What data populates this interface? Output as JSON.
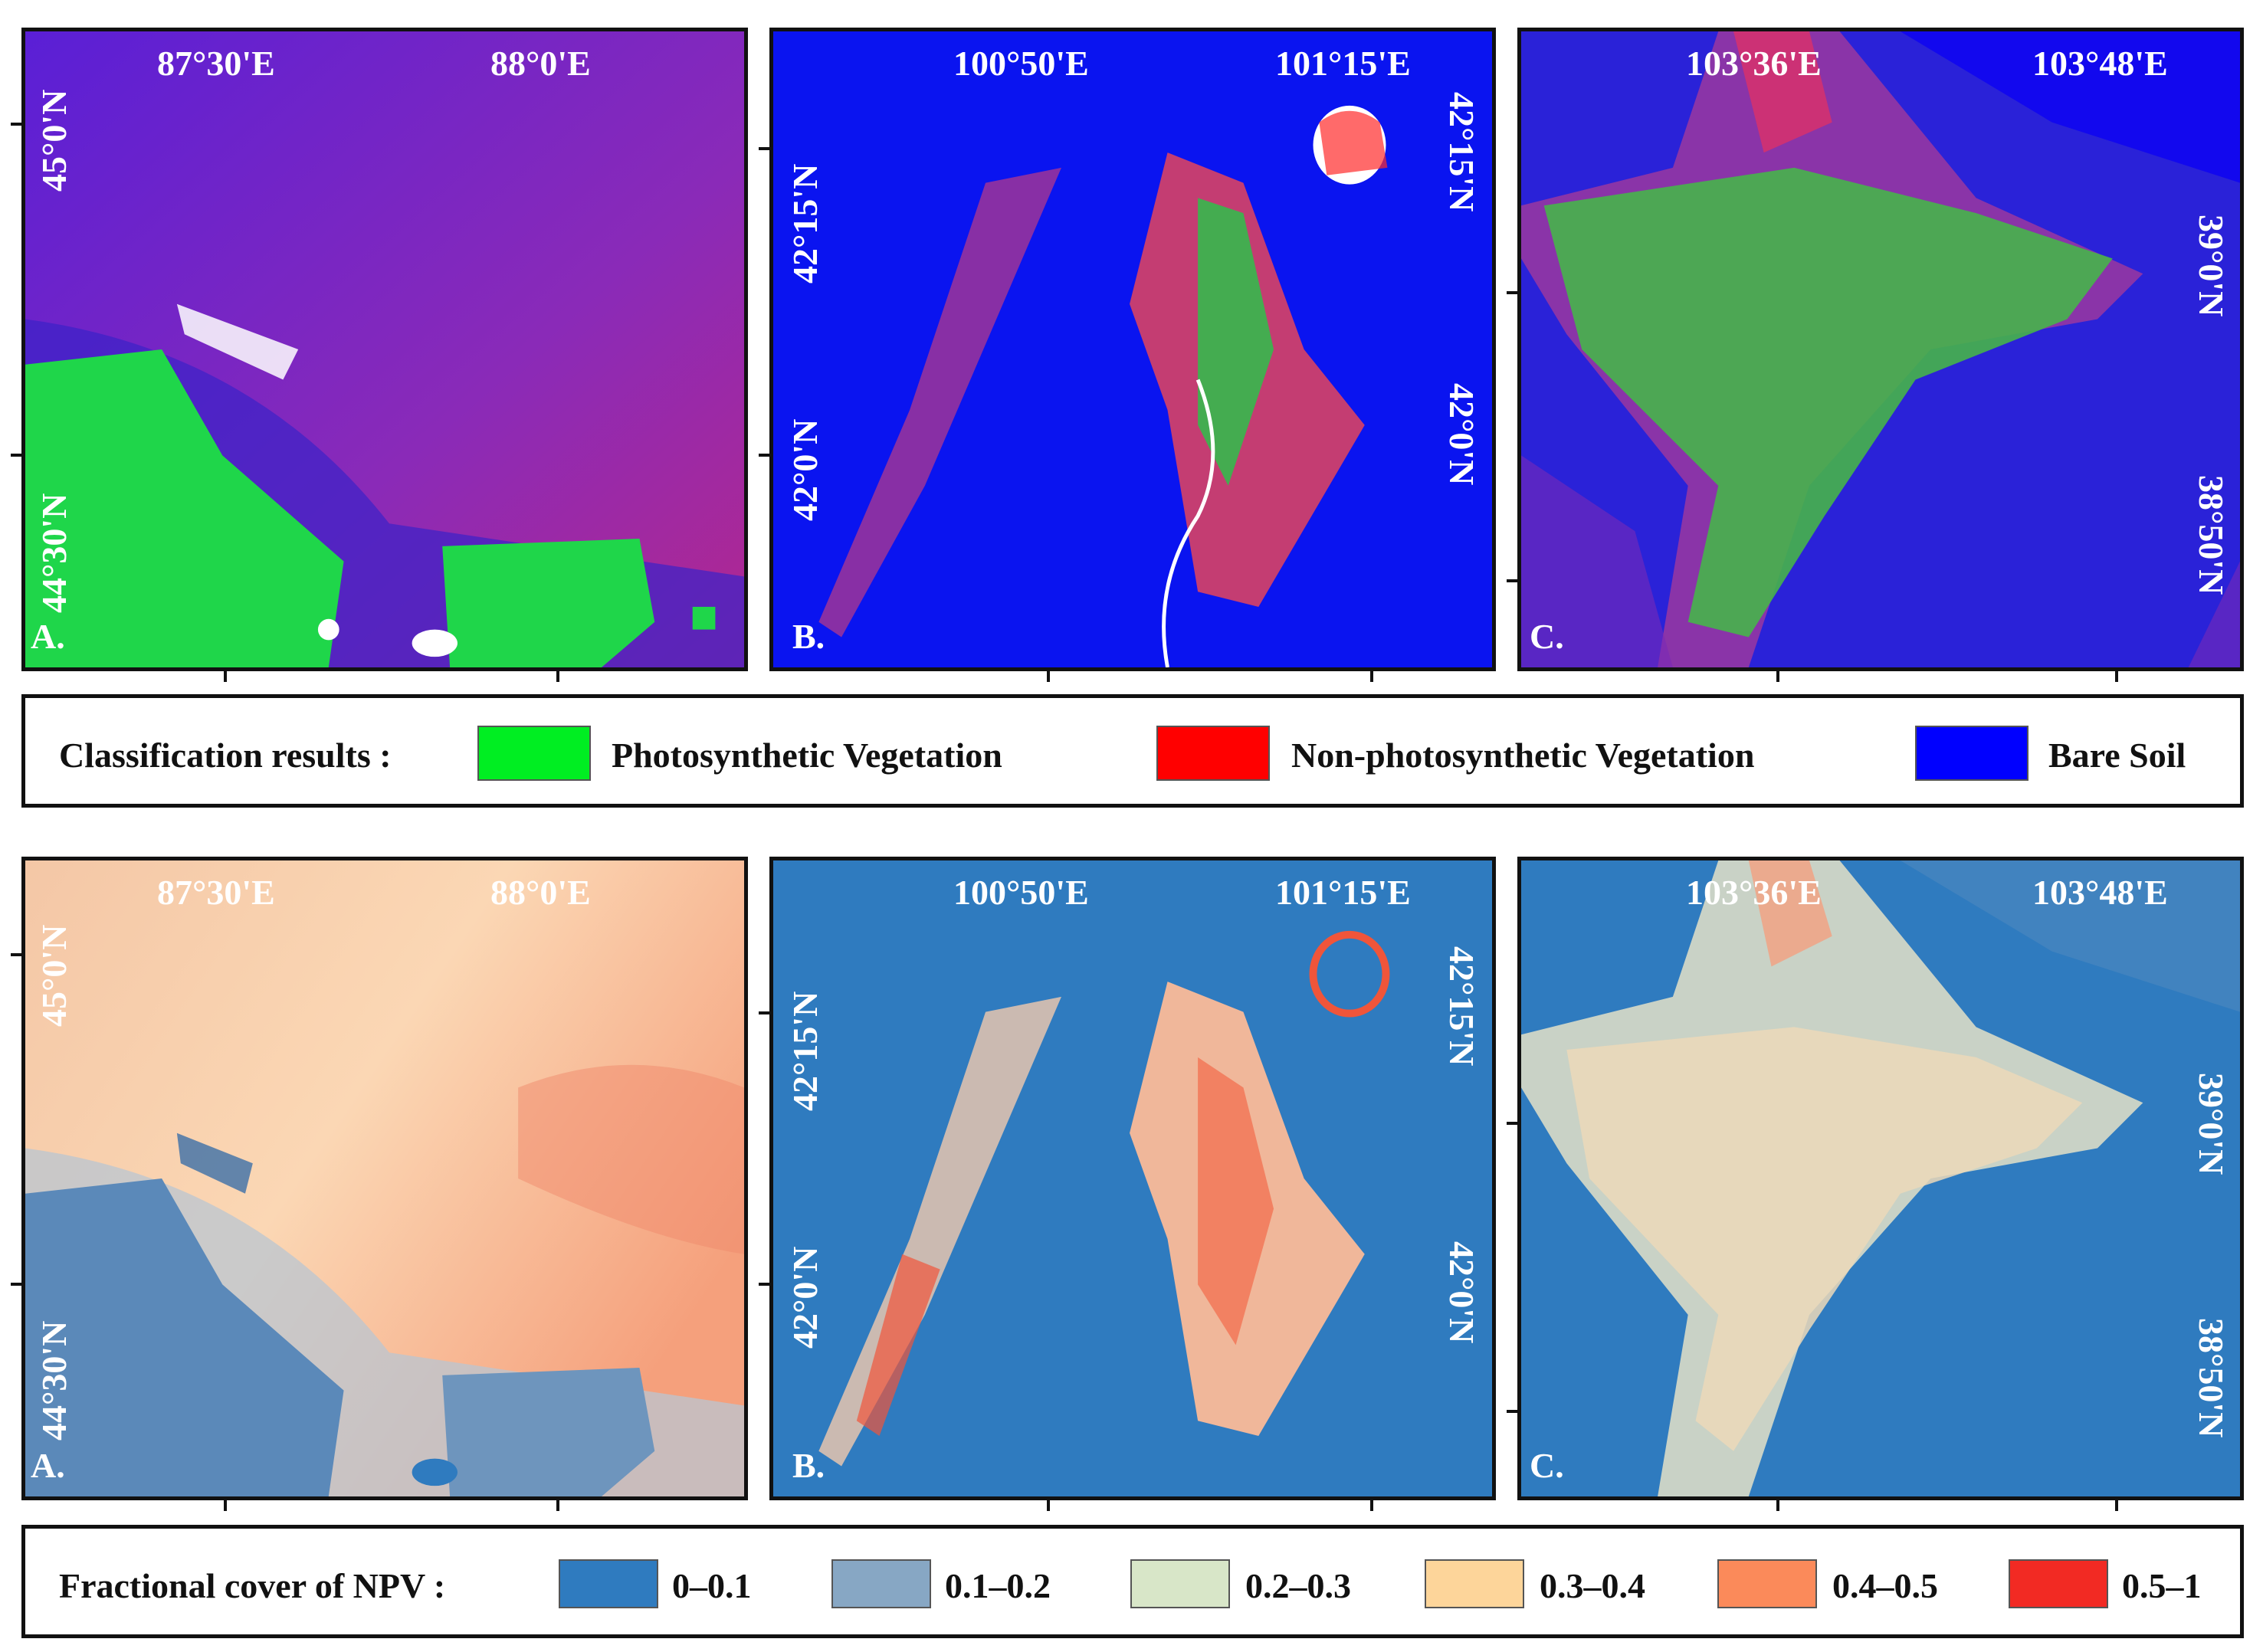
{
  "classification_panels": [
    {
      "label": "A.",
      "lon": [
        "87°30'E",
        "88°0'E"
      ],
      "lat": [
        "45°0'N",
        "44°30'N"
      ]
    },
    {
      "label": "B.",
      "lon": [
        "100°50'E",
        "101°15'E"
      ],
      "lat_left": [
        "42°15'N",
        "42°0'N"
      ],
      "lat_right": [
        "42°15'N",
        "42°0'N"
      ]
    },
    {
      "label": "C.",
      "lon": [
        "103°36'E",
        "103°48'E"
      ],
      "lat": [
        "39°0'N",
        "38°50'N"
      ]
    }
  ],
  "npv_panels": [
    {
      "label": "A.",
      "lon": [
        "87°30'E",
        "88°0'E"
      ],
      "lat": [
        "45°0'N",
        "44°30'N"
      ]
    },
    {
      "label": "B.",
      "lon": [
        "100°50'E",
        "101°15'E"
      ],
      "lat_left": [
        "42°15'N",
        "42°0'N"
      ],
      "lat_right": [
        "42°15'N",
        "42°0'N"
      ]
    },
    {
      "label": "C.",
      "lon": [
        "103°36'E",
        "103°48'E"
      ],
      "lat": [
        "39°0'N",
        "38°50'N"
      ]
    }
  ],
  "classification_legend": {
    "title": "Classification results :",
    "items": [
      {
        "label": "Photosynthetic Vegetation",
        "color": "#00ee22"
      },
      {
        "label": "Non-photosynthetic Vegetation",
        "color": "#ff0000"
      },
      {
        "label": "Bare Soil",
        "color": "#0000ff"
      }
    ]
  },
  "npv_legend": {
    "title": "Fractional cover of NPV :",
    "items": [
      {
        "label": "0–0.1",
        "color": "#2f7bbf"
      },
      {
        "label": "0.1–0.2",
        "color": "#87a7c4"
      },
      {
        "label": "0.2–0.3",
        "color": "#d8e6c8"
      },
      {
        "label": "0.3–0.4",
        "color": "#fdd59a"
      },
      {
        "label": "0.4–0.5",
        "color": "#fb8a5a"
      },
      {
        "label": "0.5–1",
        "color": "#f22a23"
      }
    ]
  }
}
